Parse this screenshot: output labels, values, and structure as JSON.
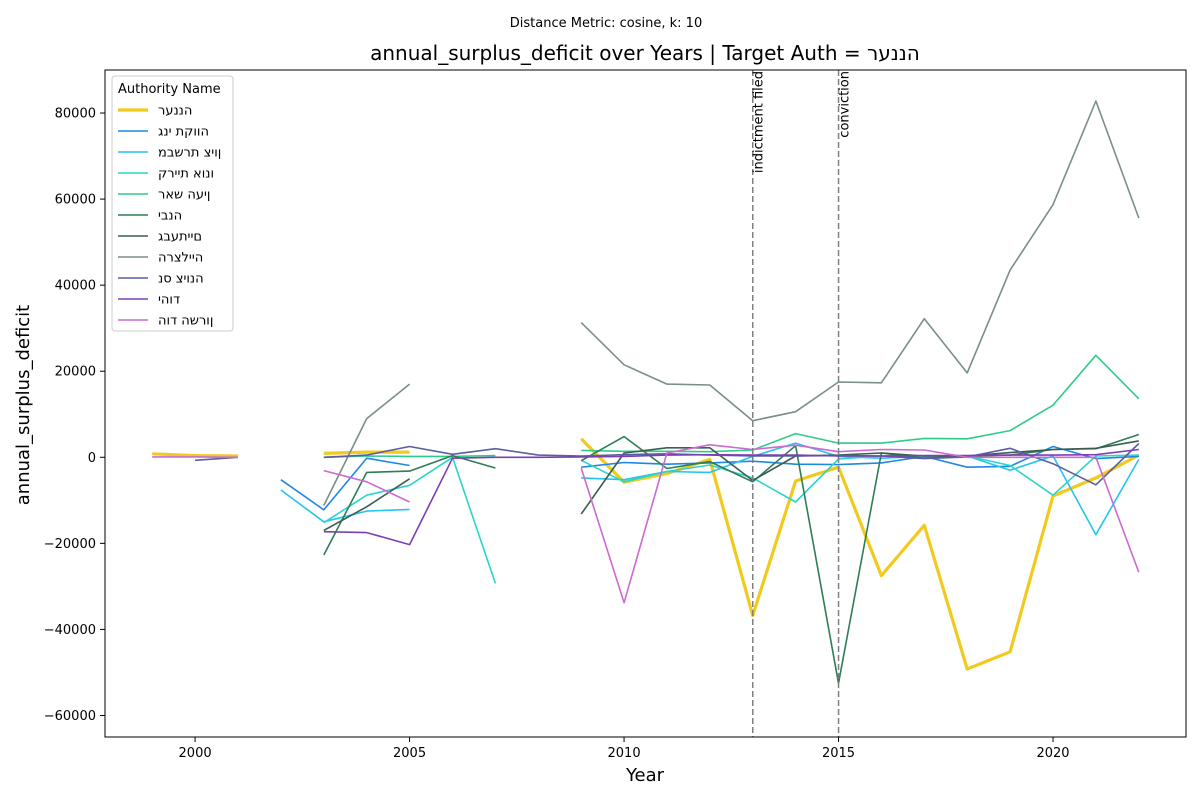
{
  "suptitle": "Distance Metric: cosine, k: 10",
  "chart_data": {
    "type": "line",
    "title": "annual_surplus_deficit over Years | Target Auth = הננער",
    "xlabel": "Year",
    "ylabel": "annual_surplus_deficit",
    "xlim": [
      1997.9,
      2023.1
    ],
    "ylim": [
      -65000,
      90000
    ],
    "xticks": [
      2000,
      2005,
      2010,
      2015,
      2020
    ],
    "yticks": [
      -60000,
      -40000,
      -20000,
      0,
      20000,
      40000,
      60000,
      80000
    ],
    "grid": false,
    "legend": {
      "title": "Authority Name",
      "placement": "top-left"
    },
    "vlines": [
      {
        "x": 2013,
        "label": "indictment filed"
      },
      {
        "x": 2015,
        "label": "conviction"
      }
    ],
    "series": [
      {
        "name": "הננער",
        "color": "#f2ca1e",
        "width": 3.2,
        "points": [
          [
            1999,
            800
          ],
          [
            2000,
            400
          ],
          [
            2001,
            300
          ],
          null,
          [
            2003,
            900
          ],
          [
            2004,
            1200
          ],
          [
            2005,
            1200
          ],
          null,
          [
            2009,
            4300
          ],
          [
            2010,
            -5800
          ],
          [
            2011,
            -3800
          ],
          [
            2012,
            -500
          ],
          [
            2013,
            -36800
          ],
          [
            2014,
            -5500
          ],
          [
            2015,
            -2300
          ],
          [
            2016,
            -27500
          ],
          [
            2017,
            -15800
          ],
          [
            2018,
            -49200
          ],
          [
            2019,
            -45200
          ],
          [
            2020,
            -9000
          ],
          [
            2021,
            -4800
          ],
          [
            2022,
            500
          ]
        ]
      },
      {
        "name": "הווקת ינג",
        "color": "#1f88e5",
        "width": 1.6,
        "points": [
          [
            2002,
            -5200
          ],
          [
            2003,
            -12200
          ],
          [
            2004,
            -200
          ],
          [
            2005,
            -1900
          ],
          null,
          [
            2009,
            -2300
          ],
          [
            2010,
            -1200
          ],
          [
            2011,
            -1600
          ],
          [
            2012,
            -1300
          ],
          [
            2013,
            -900
          ],
          [
            2014,
            -1600
          ],
          [
            2015,
            -1700
          ],
          [
            2016,
            -1300
          ],
          [
            2017,
            200
          ],
          [
            2018,
            -2300
          ],
          [
            2019,
            -2100
          ],
          [
            2020,
            2500
          ],
          [
            2021,
            -300
          ],
          [
            2022,
            200
          ]
        ]
      },
      {
        "name": "ןויצ תרשבמ",
        "color": "#25c4f0",
        "width": 1.6,
        "points": [
          [
            2002,
            -7600
          ],
          [
            2003,
            -15000
          ],
          [
            2004,
            -12500
          ],
          [
            2005,
            -12100
          ],
          null,
          [
            2009,
            -4800
          ],
          [
            2010,
            -5200
          ],
          [
            2011,
            -3300
          ],
          [
            2012,
            -3500
          ],
          [
            2013,
            200
          ],
          [
            2014,
            3300
          ],
          [
            2015,
            200
          ],
          [
            2016,
            -200
          ],
          [
            2017,
            200
          ],
          [
            2018,
            300
          ],
          [
            2019,
            -3000
          ],
          [
            2020,
            300
          ],
          [
            2021,
            -18000
          ],
          [
            2022,
            -500
          ]
        ]
      },
      {
        "name": "ונוא תיירק",
        "color": "#29d6c8",
        "width": 1.6,
        "points": [
          [
            2003,
            -15200
          ],
          [
            2004,
            -8800
          ],
          [
            2005,
            -6500
          ],
          [
            2006,
            0
          ],
          [
            2007,
            -29300
          ],
          null,
          [
            2009,
            -700
          ],
          [
            2010,
            -5700
          ],
          [
            2011,
            -3300
          ],
          [
            2012,
            -1800
          ],
          [
            2013,
            -4800
          ],
          [
            2014,
            -10400
          ],
          [
            2015,
            -400
          ],
          [
            2016,
            300
          ],
          [
            2017,
            300
          ],
          [
            2018,
            300
          ],
          [
            2019,
            -1900
          ],
          [
            2020,
            -8800
          ],
          [
            2021,
            300
          ],
          [
            2022,
            500
          ]
        ]
      },
      {
        "name": "ןיעה שאר",
        "color": "#2ecc8a",
        "width": 1.6,
        "points": [
          [
            2003,
            0
          ],
          [
            2004,
            300
          ],
          [
            2005,
            200
          ],
          [
            2006,
            200
          ],
          [
            2007,
            400
          ],
          null,
          [
            2009,
            1600
          ],
          [
            2010,
            1400
          ],
          [
            2011,
            1400
          ],
          [
            2012,
            1300
          ],
          [
            2013,
            1700
          ],
          [
            2014,
            5500
          ],
          [
            2015,
            3300
          ],
          [
            2016,
            3300
          ],
          [
            2017,
            4400
          ],
          [
            2018,
            4300
          ],
          [
            2019,
            6200
          ],
          [
            2020,
            12100
          ],
          [
            2021,
            23700
          ],
          [
            2022,
            13600
          ]
        ]
      },
      {
        "name": "הנבי",
        "color": "#2f7d57",
        "width": 1.6,
        "points": [
          [
            2003,
            -22700
          ],
          [
            2004,
            -3500
          ],
          [
            2005,
            -3200
          ],
          [
            2006,
            400
          ],
          [
            2007,
            -2500
          ],
          null,
          [
            2009,
            -800
          ],
          [
            2010,
            4800
          ],
          [
            2011,
            -2600
          ],
          [
            2012,
            -1000
          ],
          [
            2013,
            -5700
          ],
          [
            2014,
            2700
          ],
          [
            2015,
            -52500
          ],
          [
            2016,
            1000
          ],
          [
            2017,
            -200
          ],
          [
            2018,
            300
          ],
          [
            2019,
            500
          ],
          [
            2020,
            1800
          ],
          [
            2021,
            2000
          ],
          [
            2022,
            5300
          ]
        ]
      },
      {
        "name": "םייתעבג",
        "color": "#3b5e4f",
        "width": 1.6,
        "points": [
          [
            2003,
            -17000
          ],
          [
            2004,
            -11500
          ],
          [
            2005,
            -5000
          ],
          null,
          [
            2009,
            -13200
          ],
          [
            2010,
            1000
          ],
          [
            2011,
            2200
          ],
          [
            2012,
            2200
          ],
          [
            2013,
            -5400
          ],
          [
            2014,
            300
          ],
          [
            2015,
            500
          ],
          [
            2016,
            1000
          ],
          [
            2017,
            300
          ],
          [
            2018,
            300
          ],
          [
            2019,
            1100
          ],
          [
            2020,
            1800
          ],
          [
            2021,
            2100
          ],
          [
            2022,
            3800
          ]
        ]
      },
      {
        "name": "היילצרה",
        "color": "#7a8e8b",
        "width": 1.6,
        "points": [
          [
            2003,
            -11200
          ],
          [
            2004,
            9000
          ],
          [
            2005,
            17000
          ],
          null,
          [
            2009,
            31300
          ],
          [
            2010,
            21500
          ],
          [
            2011,
            17000
          ],
          [
            2012,
            16800
          ],
          [
            2013,
            8500
          ],
          [
            2014,
            10600
          ],
          [
            2015,
            17500
          ],
          [
            2016,
            17300
          ],
          [
            2017,
            32200
          ],
          [
            2018,
            19600
          ],
          [
            2019,
            43500
          ],
          [
            2020,
            58700
          ],
          [
            2021,
            82800
          ],
          [
            2022,
            55600
          ]
        ]
      },
      {
        "name": "הנויצ סנ",
        "color": "#5b5ea0",
        "width": 1.6,
        "points": [
          [
            2000,
            -700
          ],
          [
            2001,
            0
          ],
          null,
          [
            2003,
            0
          ],
          [
            2004,
            500
          ],
          [
            2005,
            2500
          ],
          [
            2006,
            700
          ],
          [
            2007,
            2000
          ],
          [
            2008,
            500
          ],
          [
            2009,
            300
          ],
          [
            2010,
            600
          ],
          [
            2011,
            800
          ],
          [
            2012,
            500
          ],
          [
            2013,
            300
          ],
          [
            2014,
            300
          ],
          [
            2015,
            400
          ],
          [
            2016,
            300
          ],
          [
            2017,
            -300
          ],
          [
            2018,
            100
          ],
          [
            2019,
            2100
          ],
          [
            2020,
            -1500
          ],
          [
            2021,
            -6400
          ],
          [
            2022,
            3200
          ]
        ]
      },
      {
        "name": "דוהי",
        "color": "#7b40b0",
        "width": 1.6,
        "points": [
          [
            2003,
            -17300
          ],
          [
            2004,
            -17500
          ],
          [
            2005,
            -20300
          ],
          [
            2006,
            -200
          ],
          [
            2007,
            0
          ],
          [
            2008,
            0
          ],
          [
            2009,
            100
          ],
          [
            2010,
            200
          ],
          [
            2011,
            500
          ],
          [
            2012,
            600
          ],
          [
            2013,
            500
          ],
          [
            2014,
            500
          ],
          [
            2015,
            300
          ],
          [
            2016,
            300
          ],
          [
            2017,
            400
          ],
          [
            2018,
            400
          ],
          [
            2019,
            500
          ],
          [
            2020,
            500
          ],
          [
            2021,
            600
          ],
          [
            2022,
            1800
          ]
        ]
      },
      {
        "name": "ןורשה דוה",
        "color": "#cc6ad2",
        "width": 1.6,
        "points": [
          [
            1999,
            100
          ],
          [
            2000,
            100
          ],
          [
            2001,
            0
          ],
          null,
          [
            2003,
            -3100
          ],
          [
            2004,
            -5700
          ],
          [
            2005,
            -10400
          ],
          null,
          [
            2009,
            -2500
          ],
          [
            2010,
            -33800
          ],
          [
            2011,
            1000
          ],
          [
            2012,
            2900
          ],
          [
            2013,
            1800
          ],
          [
            2014,
            2800
          ],
          [
            2015,
            1300
          ],
          [
            2016,
            1800
          ],
          [
            2017,
            1700
          ],
          [
            2018,
            0
          ],
          [
            2019,
            0
          ],
          [
            2020,
            0
          ],
          [
            2021,
            0
          ],
          [
            2022,
            -26700
          ]
        ]
      }
    ]
  }
}
